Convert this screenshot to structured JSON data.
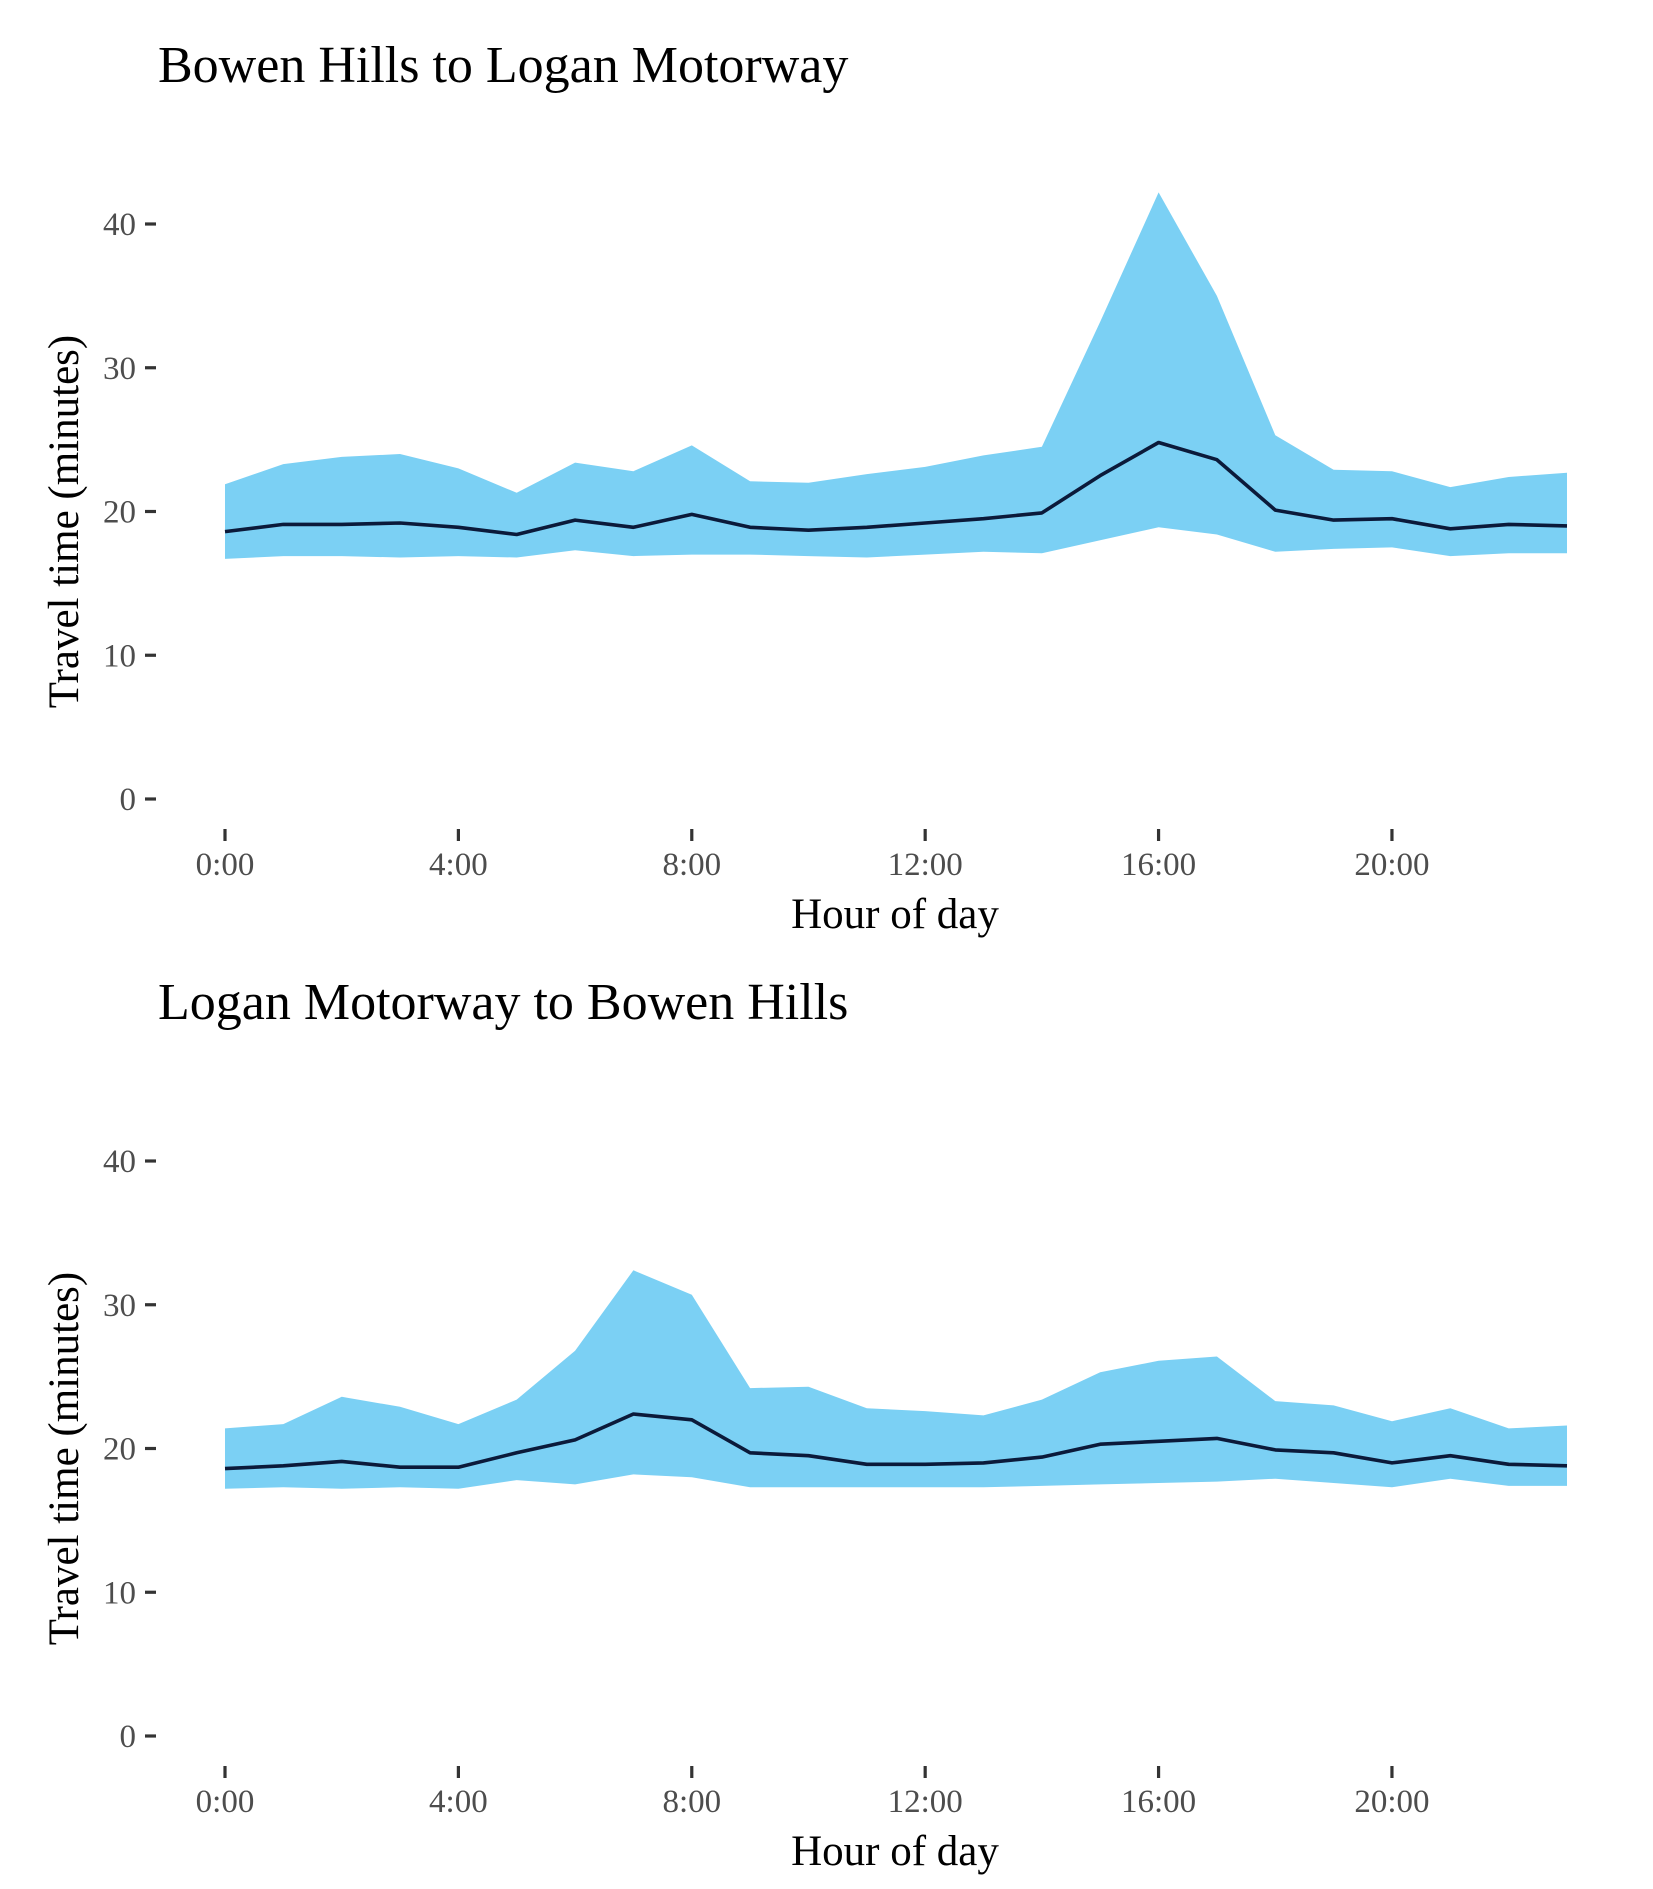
{
  "colors": {
    "band": "#7bd0f4",
    "line": "#0b1a3a",
    "tick": "#333333",
    "tick_label": "#4d4d4d"
  },
  "chart_data": [
    {
      "type": "area",
      "title": "Bowen Hills to Logan Motorway",
      "xlabel": "Hour of day",
      "ylabel": "Travel time (minutes)",
      "xlim": [
        0,
        23
      ],
      "ylim": [
        0,
        45
      ],
      "xticks": [
        0,
        4,
        8,
        12,
        16,
        20
      ],
      "xtick_labels": [
        "0:00",
        "4:00",
        "8:00",
        "12:00",
        "16:00",
        "20:00"
      ],
      "yticks": [
        0,
        10,
        20,
        30,
        40
      ],
      "ytick_labels": [
        "0",
        "10",
        "20",
        "30",
        "40"
      ],
      "grid": false,
      "x": [
        0,
        1,
        2,
        3,
        4,
        5,
        6,
        7,
        8,
        9,
        10,
        11,
        12,
        13,
        14,
        15,
        16,
        17,
        18,
        19,
        20,
        21,
        22,
        23
      ],
      "median": [
        18.6,
        19.1,
        19.1,
        19.2,
        18.9,
        18.4,
        19.4,
        18.9,
        19.8,
        18.9,
        18.7,
        18.9,
        19.2,
        19.5,
        19.9,
        22.5,
        24.8,
        23.6,
        20.1,
        19.4,
        19.5,
        18.8,
        19.1,
        19.0
      ],
      "lower": [
        16.7,
        16.9,
        16.9,
        16.8,
        16.9,
        16.8,
        17.3,
        16.9,
        17.0,
        17.0,
        16.9,
        16.8,
        17.0,
        17.2,
        17.1,
        18.0,
        18.9,
        18.4,
        17.2,
        17.4,
        17.5,
        16.9,
        17.1,
        17.1
      ],
      "upper": [
        21.9,
        23.3,
        23.8,
        24.0,
        23.0,
        21.3,
        23.4,
        22.8,
        24.6,
        22.1,
        22.0,
        22.6,
        23.1,
        23.9,
        24.5,
        33.2,
        42.2,
        35.0,
        25.3,
        22.9,
        22.8,
        21.7,
        22.4,
        22.7
      ]
    },
    {
      "type": "area",
      "title": "Logan Motorway to Bowen Hills",
      "xlabel": "Hour of day",
      "ylabel": "Travel time (minutes)",
      "xlim": [
        0,
        23
      ],
      "ylim": [
        0,
        45
      ],
      "xticks": [
        0,
        4,
        8,
        12,
        16,
        20
      ],
      "xtick_labels": [
        "0:00",
        "4:00",
        "8:00",
        "12:00",
        "16:00",
        "20:00"
      ],
      "yticks": [
        0,
        10,
        20,
        30,
        40
      ],
      "ytick_labels": [
        "0",
        "10",
        "20",
        "30",
        "40"
      ],
      "grid": false,
      "x": [
        0,
        1,
        2,
        3,
        4,
        5,
        6,
        7,
        8,
        9,
        10,
        11,
        12,
        13,
        14,
        15,
        16,
        17,
        18,
        19,
        20,
        21,
        22,
        23
      ],
      "median": [
        18.6,
        18.8,
        19.1,
        18.7,
        18.7,
        19.7,
        20.6,
        22.4,
        22.0,
        19.7,
        19.5,
        18.9,
        18.9,
        19.0,
        19.4,
        20.3,
        20.5,
        20.7,
        19.9,
        19.7,
        19.0,
        19.5,
        18.9,
        18.8
      ],
      "lower": [
        17.2,
        17.3,
        17.2,
        17.3,
        17.2,
        17.8,
        17.5,
        18.2,
        18.0,
        17.3,
        17.3,
        17.3,
        17.3,
        17.3,
        17.4,
        17.5,
        17.6,
        17.7,
        17.9,
        17.6,
        17.3,
        17.9,
        17.4,
        17.4
      ],
      "upper": [
        21.4,
        21.7,
        23.6,
        22.9,
        21.7,
        23.4,
        26.8,
        32.4,
        30.7,
        24.2,
        24.3,
        22.8,
        22.6,
        22.3,
        23.4,
        25.3,
        26.1,
        26.4,
        23.3,
        23.0,
        21.9,
        22.8,
        21.4,
        21.6
      ]
    }
  ]
}
